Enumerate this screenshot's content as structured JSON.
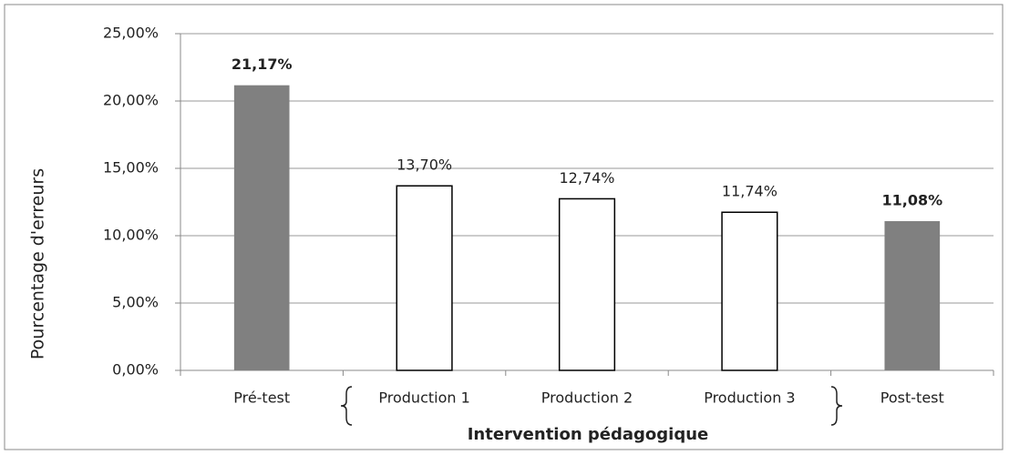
{
  "chart_data": {
    "type": "bar",
    "y_label": "Pourcentage d'erreurs",
    "x_label": "Intervention pédagogique",
    "categories": [
      "Pré-test",
      "Production 1",
      "Production 2",
      "Production 3",
      "Post-test"
    ],
    "values": [
      21.17,
      13.7,
      12.74,
      11.74,
      11.08
    ],
    "value_labels": [
      "21,17%",
      "13,70%",
      "12,74%",
      "11,74%",
      "11,08%"
    ],
    "colors": [
      "#808080",
      "#ffffff",
      "#ffffff",
      "#ffffff",
      "#808080"
    ],
    "ylim": [
      0,
      25
    ],
    "yticks": [
      {
        "value": 0,
        "label": "0,00%"
      },
      {
        "value": 5,
        "label": "5,00%"
      },
      {
        "value": 10,
        "label": "10,00%"
      },
      {
        "value": 15,
        "label": "15,00%"
      },
      {
        "value": 20,
        "label": "20,00%"
      },
      {
        "value": 25,
        "label": "25,00%"
      }
    ],
    "grid": true
  }
}
